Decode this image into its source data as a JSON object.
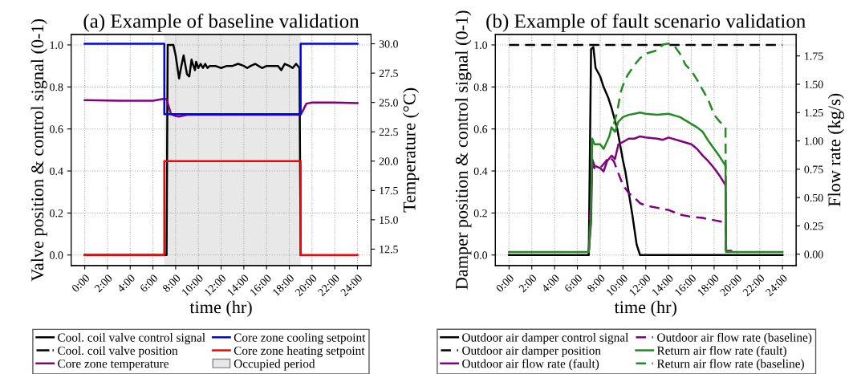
{
  "chart_data": [
    {
      "type": "line",
      "title": "(a) Example of baseline validation",
      "xlabel": "time (hr)",
      "ylabel": "Valve position & control signal (0-1)",
      "y2label": "Temperature (°C)",
      "xlim": [
        -1.2,
        25.2
      ],
      "xticks": [
        {
          "value": 0,
          "label": "0:00"
        },
        {
          "value": 2,
          "label": "2:00"
        },
        {
          "value": 4,
          "label": "4:00"
        },
        {
          "value": 6,
          "label": "6:00"
        },
        {
          "value": 8,
          "label": "8:00"
        },
        {
          "value": 10,
          "label": "10:00"
        },
        {
          "value": 12,
          "label": "12:00"
        },
        {
          "value": 14,
          "label": "14:00"
        },
        {
          "value": 16,
          "label": "16:00"
        },
        {
          "value": 18,
          "label": "18:00"
        },
        {
          "value": 20,
          "label": "20:00"
        },
        {
          "value": 22,
          "label": "22:00"
        },
        {
          "value": 24,
          "label": "24:00"
        }
      ],
      "ylim": [
        -0.05,
        1.05
      ],
      "yticks": [
        {
          "value": 0,
          "label": "0.0"
        },
        {
          "value": 0.2,
          "label": "0.2"
        },
        {
          "value": 0.4,
          "label": "0.4"
        },
        {
          "value": 0.6,
          "label": "0.6"
        },
        {
          "value": 0.8,
          "label": "0.8"
        },
        {
          "value": 1,
          "label": "1.0"
        }
      ],
      "y2lim": [
        11.1,
        30.8
      ],
      "y2ticks": [
        {
          "value": 12.5,
          "label": "12.5"
        },
        {
          "value": 15,
          "label": "15.0"
        },
        {
          "value": 17.5,
          "label": "17.5"
        },
        {
          "value": 20,
          "label": "20.0"
        },
        {
          "value": 22.5,
          "label": "22.5"
        },
        {
          "value": 25,
          "label": "25.0"
        },
        {
          "value": 27.5,
          "label": "27.5"
        },
        {
          "value": 30,
          "label": "30.0"
        }
      ],
      "grid": true,
      "legend": "bottom",
      "bands": [
        {
          "axis": "x",
          "from": 7,
          "to": 19,
          "label": "Occupied period",
          "color": "#e8e8e8"
        }
      ],
      "series": [
        {
          "name": "Cool. coil valve control signal",
          "color": "#000000",
          "line_style": "solid",
          "x": [
            0,
            7.2,
            7.3,
            7.8,
            8.0,
            8.3,
            8.5,
            8.7,
            9.0,
            9.2,
            9.4,
            9.5,
            9.7,
            9.8,
            10.0,
            10.2,
            10.4,
            10.6,
            10.8,
            11.0,
            11.5,
            12.0,
            12.5,
            13.0,
            13.5,
            14.0,
            14.3,
            14.6,
            15.0,
            15.3,
            15.6,
            16.0,
            16.5,
            17.0,
            17.3,
            17.6,
            18.0,
            18.3,
            18.6,
            18.9,
            19.0
          ],
          "values": [
            0,
            0,
            1,
            1,
            0.95,
            0.84,
            0.9,
            0.95,
            0.86,
            0.85,
            0.93,
            0.91,
            0.88,
            0.92,
            0.89,
            0.91,
            0.89,
            0.91,
            0.89,
            0.9,
            0.9,
            0.89,
            0.9,
            0.9,
            0.91,
            0.9,
            0.89,
            0.9,
            0.91,
            0.9,
            0.89,
            0.9,
            0.9,
            0.9,
            0.88,
            0.91,
            0.9,
            0.89,
            0.91,
            0.89,
            0
          ]
        },
        {
          "name": "Cool. coil valve position",
          "color": "#000000",
          "line_style": "dashdot"
        },
        {
          "name": "Core zone temperature",
          "color": "#800080",
          "line_style": "solid",
          "axis": "y2",
          "x": [
            0,
            3,
            6,
            6.9,
            7.2,
            7.4,
            7.6,
            8.0,
            8.3,
            9.0,
            12.0,
            16.0,
            19.0,
            19.2,
            19.5,
            20.0,
            22.0,
            24.0
          ],
          "values": [
            25.2,
            25.15,
            25.15,
            25.3,
            25.3,
            24.6,
            24.0,
            23.85,
            23.8,
            23.95,
            23.95,
            23.95,
            23.95,
            24.3,
            24.9,
            25.0,
            25.0,
            24.95
          ]
        },
        {
          "name": "Core zone cooling setpoint",
          "color": "#0000ff",
          "line_style": "solid",
          "axis": "y2",
          "x": [
            0,
            7,
            7,
            19,
            19,
            24
          ],
          "values": [
            30,
            30,
            24,
            24,
            30,
            30
          ]
        },
        {
          "name": "Core zone heating setpoint",
          "color": "#ff0000",
          "line_style": "solid",
          "axis": "y2",
          "x": [
            0,
            7,
            7,
            19,
            19,
            24
          ],
          "values": [
            12,
            12,
            20,
            20,
            12,
            12
          ]
        }
      ]
    },
    {
      "type": "line",
      "title": "(b) Example of fault scenario validation",
      "xlabel": "time (hr)",
      "ylabel": "Damper position & control signal (0-1)",
      "y2label": "Flow rate (kg/s)",
      "xlim": [
        -1.2,
        25.2
      ],
      "xticks": [
        {
          "value": 0,
          "label": "0:00"
        },
        {
          "value": 2,
          "label": "2:00"
        },
        {
          "value": 4,
          "label": "4:00"
        },
        {
          "value": 6,
          "label": "6:00"
        },
        {
          "value": 8,
          "label": "8:00"
        },
        {
          "value": 10,
          "label": "10:00"
        },
        {
          "value": 12,
          "label": "12:00"
        },
        {
          "value": 14,
          "label": "14:00"
        },
        {
          "value": 16,
          "label": "16:00"
        },
        {
          "value": 18,
          "label": "18:00"
        },
        {
          "value": 20,
          "label": "20:00"
        },
        {
          "value": 22,
          "label": "22:00"
        },
        {
          "value": 24,
          "label": "24:00"
        }
      ],
      "ylim": [
        -0.05,
        1.05
      ],
      "yticks": [
        {
          "value": 0,
          "label": "0.0"
        },
        {
          "value": 0.2,
          "label": "0.2"
        },
        {
          "value": 0.4,
          "label": "0.4"
        },
        {
          "value": 0.6,
          "label": "0.6"
        },
        {
          "value": 0.8,
          "label": "0.8"
        },
        {
          "value": 1,
          "label": "1.0"
        }
      ],
      "y2lim": [
        -0.1,
        1.94
      ],
      "y2ticks": [
        {
          "value": 0,
          "label": "0.00"
        },
        {
          "value": 0.25,
          "label": "0.25"
        },
        {
          "value": 0.5,
          "label": "0.50"
        },
        {
          "value": 0.75,
          "label": "0.75"
        },
        {
          "value": 1,
          "label": "1.00"
        },
        {
          "value": 1.25,
          "label": "1.25"
        },
        {
          "value": 1.5,
          "label": "1.50"
        },
        {
          "value": 1.75,
          "label": "1.75"
        }
      ],
      "grid": true,
      "legend": "bottom",
      "series": [
        {
          "name": "Outdoor air damper control signal",
          "color": "#000000",
          "line_style": "solid",
          "x": [
            0,
            7.0,
            7.2,
            7.4,
            7.6,
            8.0,
            8.3,
            8.7,
            9.0,
            9.5,
            10.0,
            10.2,
            10.5,
            10.8,
            11.2,
            11.5,
            24
          ],
          "values": [
            0,
            0,
            0.98,
            0.99,
            0.89,
            0.85,
            0.8,
            0.75,
            0.7,
            0.6,
            0.45,
            0.4,
            0.3,
            0.2,
            0.05,
            0,
            0
          ]
        },
        {
          "name": "Outdoor air damper position",
          "color": "#000000",
          "line_style": "dashed",
          "x": [
            0,
            24
          ],
          "values": [
            1,
            1
          ]
        },
        {
          "name": "Outdoor air flow rate (fault)",
          "color": "#800080",
          "line_style": "solid",
          "axis": "y2",
          "x": [
            7.0,
            7.2,
            7.3,
            7.5,
            8.0,
            8.3,
            8.6,
            9.0,
            9.3,
            9.6,
            10.0,
            10.5,
            11.0,
            11.5,
            12.0,
            13.0,
            13.5,
            14.0,
            15.0,
            16.0,
            16.5,
            17.0,
            17.5,
            18.0,
            18.5,
            19.0,
            19.05,
            19.5
          ],
          "values": [
            0.02,
            0.28,
            0.84,
            0.78,
            0.76,
            0.73,
            0.82,
            0.87,
            0.84,
            0.97,
            0.99,
            1.02,
            1.02,
            1.04,
            1.03,
            1.02,
            1.01,
            1.03,
            1.0,
            0.97,
            0.93,
            0.87,
            0.82,
            0.76,
            0.69,
            0.61,
            0.03,
            0.03
          ]
        },
        {
          "name": "Outdoor air flow rate (baseline)",
          "color": "#800080",
          "line_style": "dashed",
          "axis": "y2",
          "x": [
            7.0,
            7.2,
            7.3,
            7.5,
            8.0,
            8.5,
            8.8,
            9.2,
            9.5,
            10.0,
            10.5,
            11.0,
            11.5,
            12.0,
            13.0,
            14.0,
            15.0,
            16.0,
            17.0,
            18.0,
            19.0,
            19.05
          ],
          "values": [
            0.02,
            0.56,
            0.78,
            0.76,
            0.76,
            0.82,
            0.86,
            0.82,
            0.74,
            0.61,
            0.54,
            0.5,
            0.45,
            0.43,
            0.41,
            0.39,
            0.35,
            0.33,
            0.32,
            0.3,
            0.28,
            0.02
          ]
        },
        {
          "name": "Return air flow rate (fault)",
          "color": "#228b22",
          "line_style": "solid",
          "axis": "y2",
          "x": [
            0,
            7.0,
            7.2,
            7.3,
            7.5,
            8.0,
            8.3,
            8.8,
            9.0,
            9.3,
            9.6,
            10.0,
            10.5,
            11.0,
            11.5,
            12.0,
            13.0,
            14.0,
            15.0,
            16.0,
            16.5,
            17.0,
            17.5,
            18.0,
            18.5,
            19.0,
            19.05,
            24
          ],
          "values": [
            0.02,
            0.02,
            0.37,
            1.02,
            0.97,
            0.97,
            0.93,
            1.04,
            1.12,
            1.08,
            1.17,
            1.21,
            1.23,
            1.24,
            1.25,
            1.24,
            1.23,
            1.24,
            1.21,
            1.15,
            1.12,
            1.08,
            1.0,
            0.93,
            0.86,
            0.78,
            0.02,
            0.02
          ]
        },
        {
          "name": "Return air flow rate (baseline)",
          "color": "#228b22",
          "line_style": "dashed",
          "axis": "y2",
          "x": [
            9.2,
            9.5,
            9.8,
            10.0,
            10.4,
            11.0,
            11.5,
            12.0,
            13.0,
            13.5,
            14.0,
            14.5,
            15.0,
            15.5,
            16.0,
            16.5,
            17.0,
            17.5,
            18.0,
            18.5,
            19.0,
            19.05
          ],
          "values": [
            1.15,
            1.26,
            1.43,
            1.49,
            1.58,
            1.67,
            1.73,
            1.77,
            1.8,
            1.85,
            1.86,
            1.84,
            1.77,
            1.67,
            1.62,
            1.54,
            1.45,
            1.36,
            1.23,
            1.17,
            1.12,
            0.02
          ]
        }
      ]
    }
  ]
}
